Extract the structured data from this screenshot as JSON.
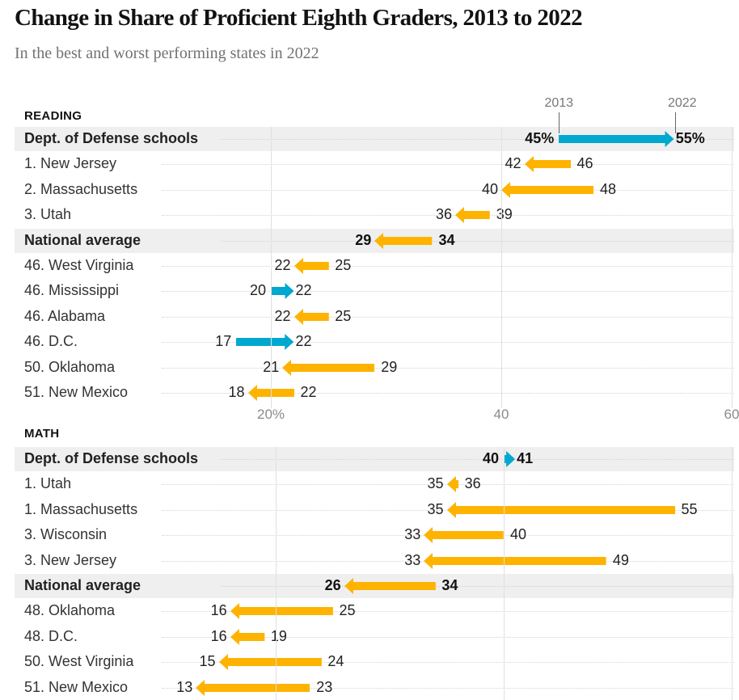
{
  "title": "Change in Share of Proficient Eighth Graders, 2013 to 2022",
  "subtitle": "In the best and worst performing states in 2022",
  "colors": {
    "increase": "#00a8cf",
    "decrease": "#fdb300",
    "highlight_row": "#efefef",
    "gridline": "#e0e0e0"
  },
  "annotations": {
    "start_label": "2013",
    "end_label": "2022"
  },
  "chart_data": [
    {
      "type": "arrow-range",
      "title": "READING",
      "xlim": [
        0,
        60
      ],
      "ticks": [
        20,
        40,
        60
      ],
      "tick_labels": [
        "20%",
        "40",
        "60"
      ],
      "rows": [
        {
          "label": "Dept. of Defense schools",
          "y2013": 45,
          "y2022": 55,
          "highlight": true,
          "l2013": "45%",
          "l2022": "55%"
        },
        {
          "label": "1. New Jersey",
          "y2013": 46,
          "y2022": 42,
          "highlight": false,
          "l2013": "46",
          "l2022": "42"
        },
        {
          "label": "2. Massachusetts",
          "y2013": 48,
          "y2022": 40,
          "highlight": false,
          "l2013": "48",
          "l2022": "40"
        },
        {
          "label": "3. Utah",
          "y2013": 39,
          "y2022": 36,
          "highlight": false,
          "l2013": "39",
          "l2022": "36"
        },
        {
          "label": "National average",
          "y2013": 34,
          "y2022": 29,
          "highlight": true,
          "l2013": "34",
          "l2022": "29"
        },
        {
          "label": "46. West Virginia",
          "y2013": 25,
          "y2022": 22,
          "highlight": false,
          "l2013": "25",
          "l2022": "22"
        },
        {
          "label": "46. Mississippi",
          "y2013": 20,
          "y2022": 22,
          "highlight": false,
          "l2013": "20",
          "l2022": "22"
        },
        {
          "label": "46. Alabama",
          "y2013": 25,
          "y2022": 22,
          "highlight": false,
          "l2013": "25",
          "l2022": "22"
        },
        {
          "label": "46. D.C.",
          "y2013": 17,
          "y2022": 22,
          "highlight": false,
          "l2013": "17",
          "l2022": "22"
        },
        {
          "label": "50. Oklahoma",
          "y2013": 29,
          "y2022": 21,
          "highlight": false,
          "l2013": "29",
          "l2022": "21"
        },
        {
          "label": "51. New Mexico",
          "y2013": 22,
          "y2022": 18,
          "highlight": false,
          "l2013": "22",
          "l2022": "18"
        }
      ]
    },
    {
      "type": "arrow-range",
      "title": "MATH",
      "xlim": [
        0,
        60
      ],
      "ticks": [
        20,
        40,
        60
      ],
      "tick_labels": [],
      "rows": [
        {
          "label": "Dept. of Defense schools",
          "y2013": 40,
          "y2022": 41,
          "highlight": true,
          "l2013": "40",
          "l2022": "41"
        },
        {
          "label": "1. Utah",
          "y2013": 36,
          "y2022": 35,
          "highlight": false,
          "l2013": "36",
          "l2022": "35"
        },
        {
          "label": "1. Massachusetts",
          "y2013": 55,
          "y2022": 35,
          "highlight": false,
          "l2013": "55",
          "l2022": "35"
        },
        {
          "label": "3. Wisconsin",
          "y2013": 40,
          "y2022": 33,
          "highlight": false,
          "l2013": "40",
          "l2022": "33"
        },
        {
          "label": "3. New Jersey",
          "y2013": 49,
          "y2022": 33,
          "highlight": false,
          "l2013": "49",
          "l2022": "33"
        },
        {
          "label": "National average",
          "y2013": 34,
          "y2022": 26,
          "highlight": true,
          "l2013": "34",
          "l2022": "26"
        },
        {
          "label": "48. Oklahoma",
          "y2013": 25,
          "y2022": 16,
          "highlight": false,
          "l2013": "25",
          "l2022": "16"
        },
        {
          "label": "48. D.C.",
          "y2013": 19,
          "y2022": 16,
          "highlight": false,
          "l2013": "19",
          "l2022": "16"
        },
        {
          "label": "50. West Virginia",
          "y2013": 24,
          "y2022": 15,
          "highlight": false,
          "l2013": "24",
          "l2022": "15"
        },
        {
          "label": "51. New Mexico",
          "y2013": 23,
          "y2022": 13,
          "highlight": false,
          "l2013": "23",
          "l2022": "13"
        }
      ]
    }
  ]
}
